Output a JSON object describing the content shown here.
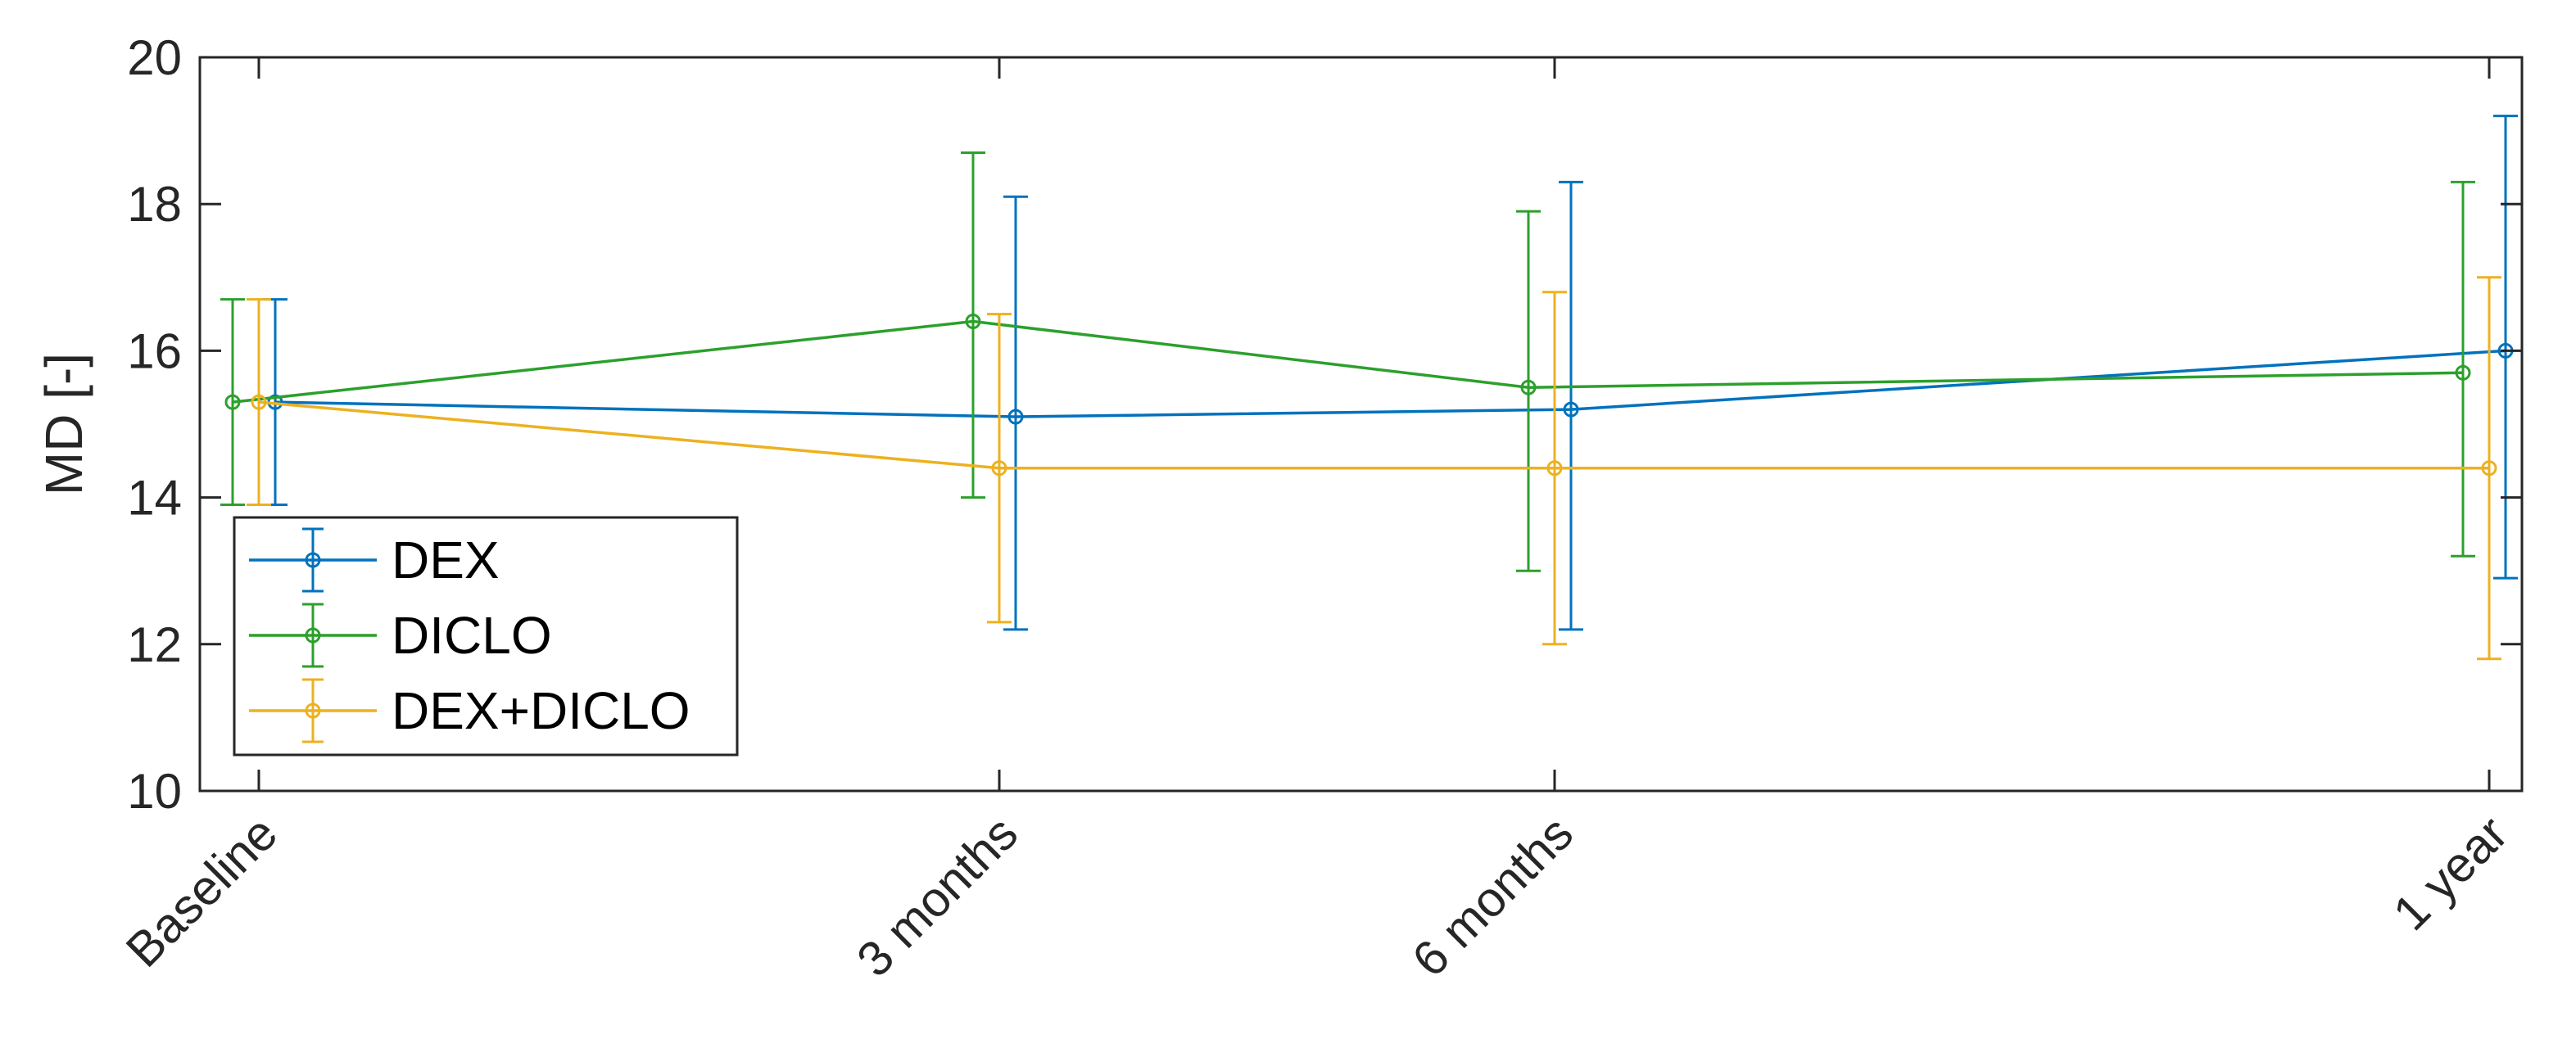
{
  "chart_data": {
    "type": "line",
    "categories": [
      "Baseline",
      "3 months",
      "6 months",
      "1 year"
    ],
    "ylabel": "MD [-]",
    "xlabel": "",
    "ylim": [
      10,
      20
    ],
    "yticks": [
      10,
      12,
      14,
      16,
      18,
      20
    ],
    "grid": false,
    "legend_position": "bottom-left",
    "error_bars": true,
    "series": [
      {
        "name": "DEX",
        "color": "#0072BD",
        "values": [
          15.3,
          15.1,
          15.2,
          16.0
        ],
        "lower": [
          13.9,
          12.2,
          12.2,
          12.9
        ],
        "upper": [
          16.7,
          18.1,
          18.3,
          19.2
        ]
      },
      {
        "name": "DICLO",
        "color": "#2CA02C",
        "values": [
          15.3,
          16.4,
          15.5,
          15.7
        ],
        "lower": [
          13.9,
          14.0,
          13.0,
          13.2
        ],
        "upper": [
          16.7,
          18.7,
          17.9,
          18.3
        ]
      },
      {
        "name": "DEX+DICLO",
        "color": "#EDB120",
        "values": [
          15.3,
          14.4,
          14.4,
          14.4
        ],
        "lower": [
          13.9,
          12.3,
          12.0,
          11.8
        ],
        "upper": [
          16.7,
          16.5,
          16.8,
          17.0
        ]
      }
    ]
  }
}
